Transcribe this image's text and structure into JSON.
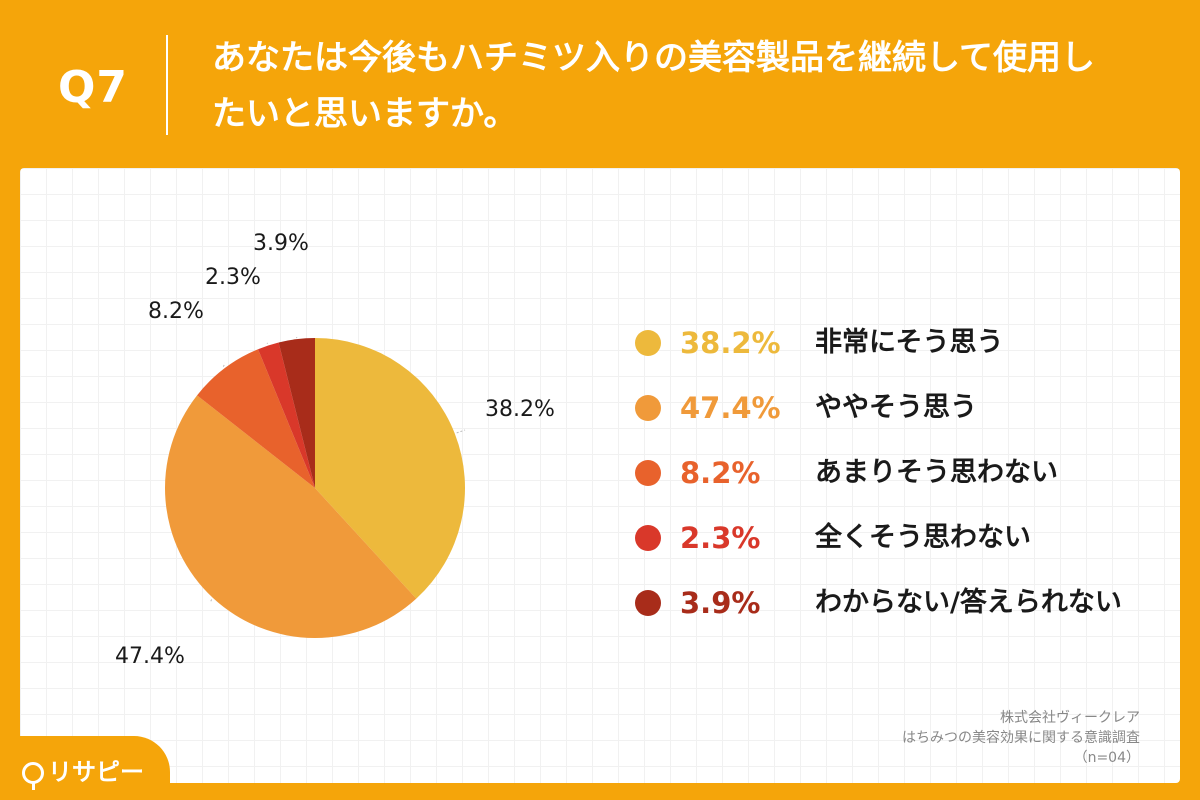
{
  "header": {
    "question_number": "Q7",
    "question_text": "あなたは今後もハチミツ入りの美容製品を継続して使用したいと思いますか。"
  },
  "chart_data": {
    "type": "pie",
    "title": "",
    "start_angle_deg": 0,
    "direction": "clockwise",
    "slices": [
      {
        "label": "非常にそう思う",
        "value": 38.2,
        "display": "38.2%",
        "color": "#EDB93C"
      },
      {
        "label": "ややそう思う",
        "value": 47.4,
        "display": "47.4%",
        "color": "#F09A3A"
      },
      {
        "label": "あまりそう思わない",
        "value": 8.2,
        "display": "8.2%",
        "color": "#E8622C"
      },
      {
        "label": "全くそう思わない",
        "value": 2.3,
        "display": "2.3%",
        "color": "#D9382A"
      },
      {
        "label": "わからない/答えられない",
        "value": 3.9,
        "display": "3.9%",
        "color": "#A82C1A"
      }
    ]
  },
  "footer": {
    "company": "株式会社ヴィークレア",
    "survey": "はちみつの美容効果に関する意識調査",
    "sample": "（n=04）"
  },
  "logo": {
    "text": "リサピー"
  }
}
